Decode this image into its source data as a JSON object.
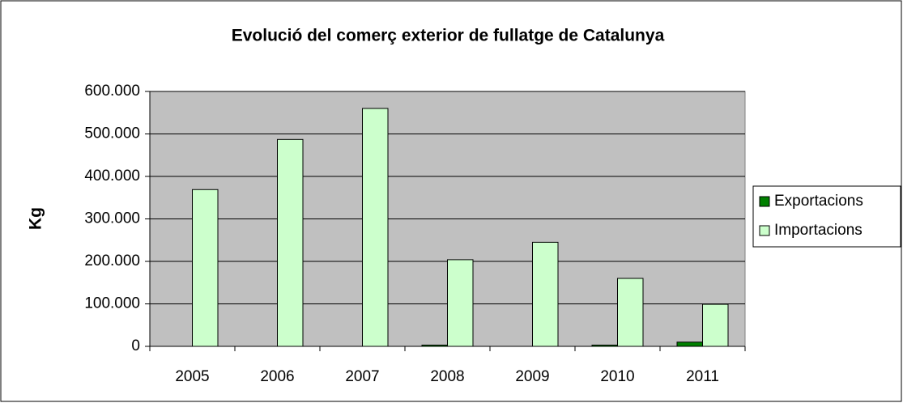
{
  "chart_data": {
    "type": "bar",
    "title": "Evolució del comerç exterior de fullatge de Catalunya",
    "y_label": "Kg",
    "categories": [
      "2005",
      "2006",
      "2007",
      "2008",
      "2009",
      "2010",
      "2011"
    ],
    "series": [
      {
        "name": "Exportacions",
        "color": "#008000",
        "values": [
          0,
          0,
          0,
          3000,
          0,
          3000,
          10000
        ]
      },
      {
        "name": "Importacions",
        "color": "#ccffcc",
        "values": [
          369000,
          487000,
          560000,
          204000,
          245000,
          160000,
          99000
        ]
      }
    ],
    "ylim": [
      0,
      600000
    ],
    "yticks": [
      0,
      {
        "value": 100000,
        "label": "100.000"
      },
      {
        "value": 200000,
        "label": "200.000"
      },
      {
        "value": 300000,
        "label": "300.000"
      },
      {
        "value": 400000,
        "label": "400.000"
      },
      {
        "value": 500000,
        "label": "500.000"
      },
      {
        "value": 600000,
        "label": "600.000"
      }
    ],
    "grid": true,
    "legend": "right"
  }
}
